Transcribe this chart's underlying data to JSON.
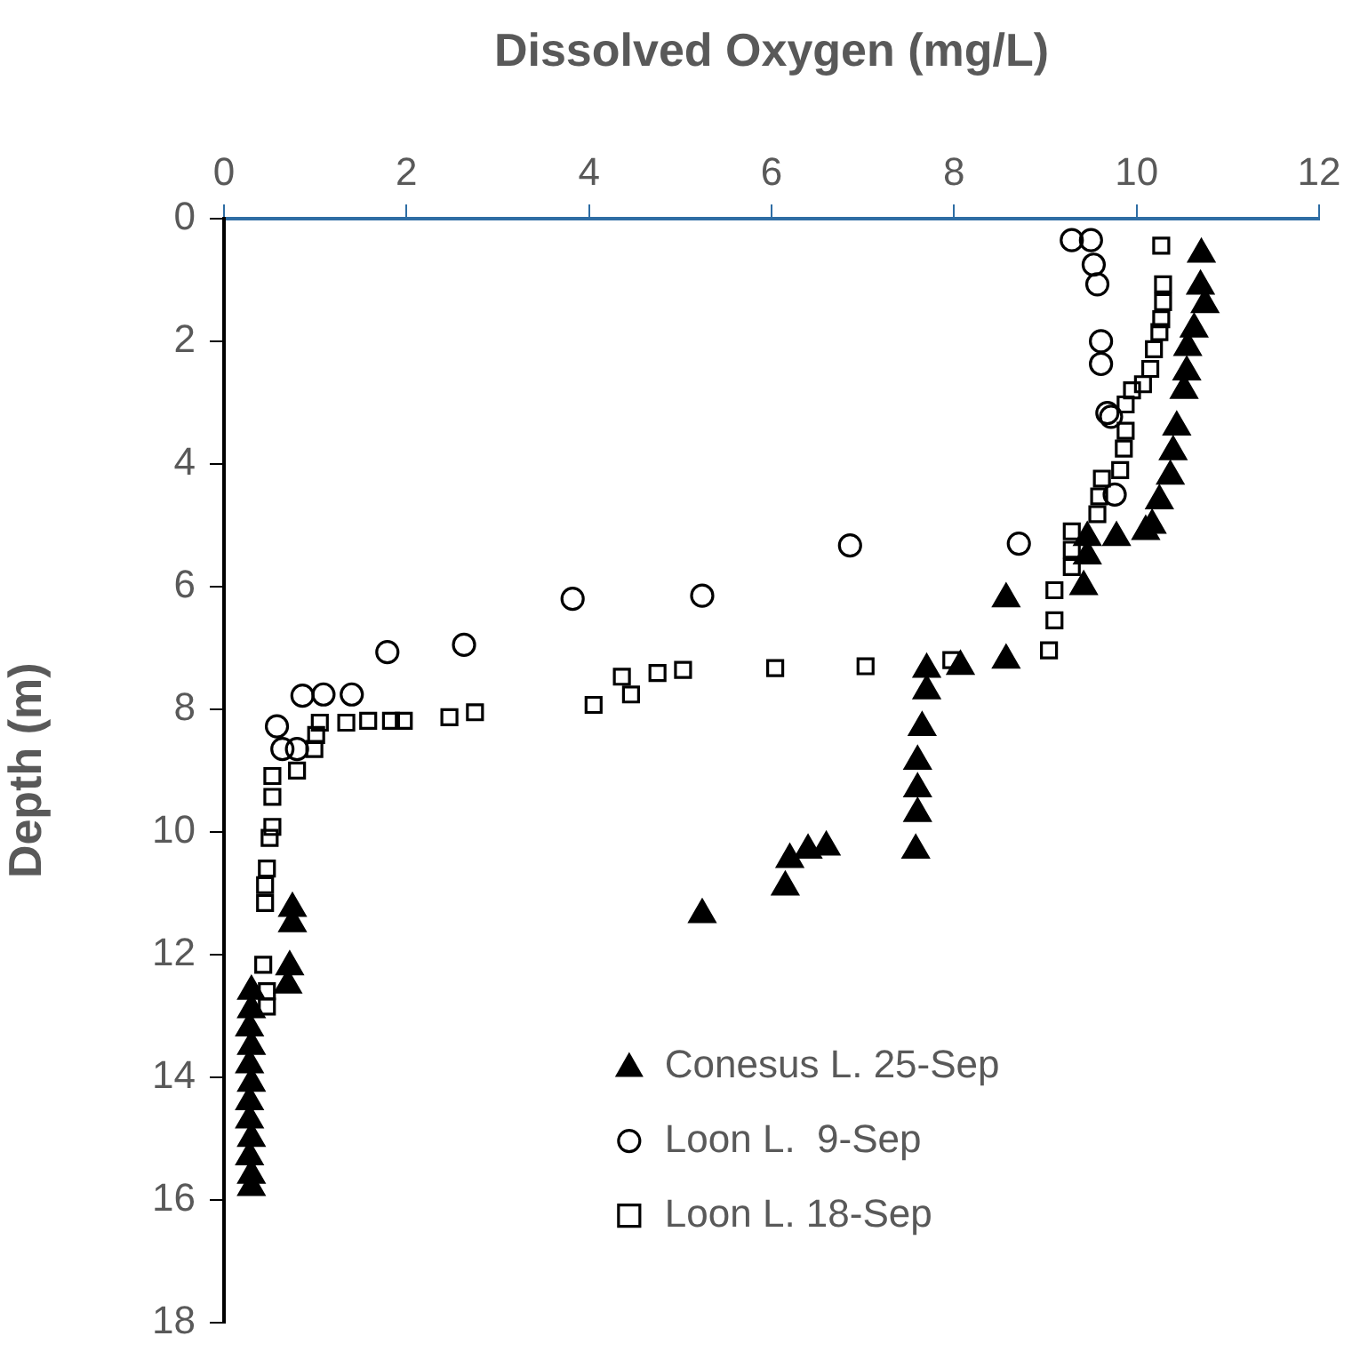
{
  "chart_data": {
    "type": "scatter",
    "xlabel": "Dissolved Oxygen (mg/L)",
    "ylabel": "Depth (m)",
    "xlim": [
      0,
      12
    ],
    "xticks": [
      0,
      2,
      4,
      6,
      8,
      10,
      12
    ],
    "ylim": [
      18,
      0
    ],
    "yticks": [
      0,
      2,
      4,
      6,
      8,
      10,
      12,
      14,
      16,
      18
    ],
    "grid": false,
    "legend": "bottom right",
    "series": [
      {
        "name": "Conesus L. 25-Sep",
        "color": "#000000",
        "marker": "triangle",
        "x": [
          10.71,
          10.7,
          10.75,
          10.63,
          10.56,
          10.55,
          10.52,
          10.44,
          10.4,
          10.37,
          10.25,
          10.17,
          10.1,
          9.78,
          9.46,
          9.46,
          9.42,
          8.57,
          8.57,
          8.07,
          7.7,
          7.7,
          7.65,
          7.6,
          7.6,
          7.6,
          7.58,
          6.6,
          6.4,
          6.2,
          6.15,
          5.24,
          0.75,
          0.75,
          0.72,
          0.7,
          0.3,
          0.3,
          0.28,
          0.3,
          0.28,
          0.3,
          0.28,
          0.28,
          0.3,
          0.28,
          0.3,
          0.3
        ],
        "values": [
          0.58,
          1.1,
          1.4,
          1.8,
          2.1,
          2.5,
          2.8,
          3.4,
          3.8,
          4.2,
          4.6,
          5.0,
          5.1,
          5.2,
          5.2,
          5.5,
          6.0,
          6.2,
          7.2,
          7.3,
          7.35,
          7.7,
          8.3,
          8.85,
          9.3,
          9.7,
          10.3,
          10.25,
          10.3,
          10.45,
          10.9,
          11.35,
          11.25,
          11.5,
          12.2,
          12.5,
          12.6,
          12.9,
          13.2,
          13.5,
          13.8,
          14.1,
          14.4,
          14.7,
          15.0,
          15.3,
          15.6,
          15.8
        ]
      },
      {
        "name": "Loon L.  9-Sep",
        "color": "#000000",
        "marker": "circle",
        "x": [
          9.29,
          9.5,
          9.53,
          9.57,
          9.61,
          9.61,
          9.68,
          9.72,
          9.76,
          8.71,
          6.86,
          5.24,
          3.82,
          2.63,
          1.79,
          0.86,
          1.09,
          1.4,
          0.58,
          0.64,
          0.8
        ],
        "values": [
          0.35,
          0.35,
          0.75,
          1.07,
          2.0,
          2.37,
          3.17,
          3.23,
          4.5,
          5.3,
          5.33,
          6.15,
          6.2,
          6.95,
          7.07,
          7.78,
          7.76,
          7.76,
          8.28,
          8.65,
          8.65
        ]
      },
      {
        "name": "Loon L. 18-Sep",
        "color": "#000000",
        "marker": "square",
        "x": [
          10.27,
          10.29,
          10.29,
          10.27,
          10.25,
          10.19,
          10.15,
          10.07,
          9.95,
          9.88,
          9.88,
          9.86,
          9.82,
          9.62,
          9.59,
          9.57,
          9.29,
          9.29,
          9.29,
          9.1,
          9.1,
          9.04,
          7.97,
          7.03,
          6.04,
          5.03,
          4.75,
          4.36,
          4.46,
          4.05,
          2.75,
          2.47,
          1.97,
          1.83,
          1.58,
          1.34,
          1.05,
          1.01,
          0.99,
          0.8,
          0.53,
          0.53,
          0.53,
          0.5,
          0.47,
          0.45,
          0.45,
          0.43,
          0.47,
          0.47
        ],
        "values": [
          0.44,
          1.07,
          1.36,
          1.64,
          1.85,
          2.13,
          2.45,
          2.7,
          2.8,
          3.03,
          3.46,
          3.75,
          4.1,
          4.24,
          4.53,
          4.82,
          5.1,
          5.4,
          5.68,
          6.06,
          6.55,
          7.04,
          7.2,
          7.3,
          7.33,
          7.36,
          7.41,
          7.47,
          7.76,
          7.93,
          8.05,
          8.13,
          8.19,
          8.19,
          8.19,
          8.22,
          8.22,
          8.42,
          8.65,
          9.0,
          9.09,
          9.43,
          9.92,
          10.1,
          10.6,
          10.87,
          11.16,
          12.17,
          12.6,
          12.85
        ]
      }
    ]
  }
}
